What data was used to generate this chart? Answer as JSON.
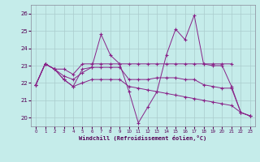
{
  "xlabel": "Windchill (Refroidissement éolien,°C)",
  "background_color": "#c5ecea",
  "grid_color": "#aacccc",
  "line_color": "#882288",
  "xlim": [
    -0.5,
    23.5
  ],
  "ylim": [
    19.5,
    26.5
  ],
  "yticks": [
    20,
    21,
    22,
    23,
    24,
    25,
    26
  ],
  "xticks": [
    0,
    1,
    2,
    3,
    4,
    5,
    6,
    7,
    8,
    9,
    10,
    11,
    12,
    13,
    14,
    15,
    16,
    17,
    18,
    19,
    20,
    21,
    22,
    23
  ],
  "series": [
    [
      21.9,
      23.1,
      22.8,
      22.2,
      21.8,
      22.8,
      22.9,
      24.8,
      23.6,
      23.1,
      21.5,
      19.7,
      20.6,
      21.5,
      23.6,
      25.1,
      24.5,
      25.9,
      23.1,
      23.0,
      23.0,
      21.8,
      20.3,
      20.1
    ],
    [
      21.9,
      23.1,
      22.8,
      22.8,
      22.5,
      23.1,
      23.1,
      23.1,
      23.1,
      23.1,
      23.1,
      23.1,
      23.1,
      23.1,
      23.1,
      23.1,
      23.1,
      23.1,
      23.1,
      23.1,
      23.1,
      23.1,
      null,
      null
    ],
    [
      21.9,
      23.1,
      22.8,
      22.4,
      22.2,
      22.6,
      22.9,
      22.9,
      22.9,
      22.9,
      22.2,
      22.2,
      22.2,
      22.3,
      22.3,
      22.3,
      22.2,
      22.2,
      21.9,
      21.8,
      21.7,
      21.7,
      20.3,
      20.1
    ],
    [
      21.9,
      23.1,
      22.8,
      22.2,
      21.8,
      22.0,
      22.2,
      22.2,
      22.2,
      22.2,
      21.8,
      21.7,
      21.6,
      21.5,
      21.4,
      21.3,
      21.2,
      21.1,
      21.0,
      20.9,
      20.8,
      20.7,
      20.3,
      20.1
    ]
  ],
  "x": [
    0,
    1,
    2,
    3,
    4,
    5,
    6,
    7,
    8,
    9,
    10,
    11,
    12,
    13,
    14,
    15,
    16,
    17,
    18,
    19,
    20,
    21,
    22,
    23
  ]
}
